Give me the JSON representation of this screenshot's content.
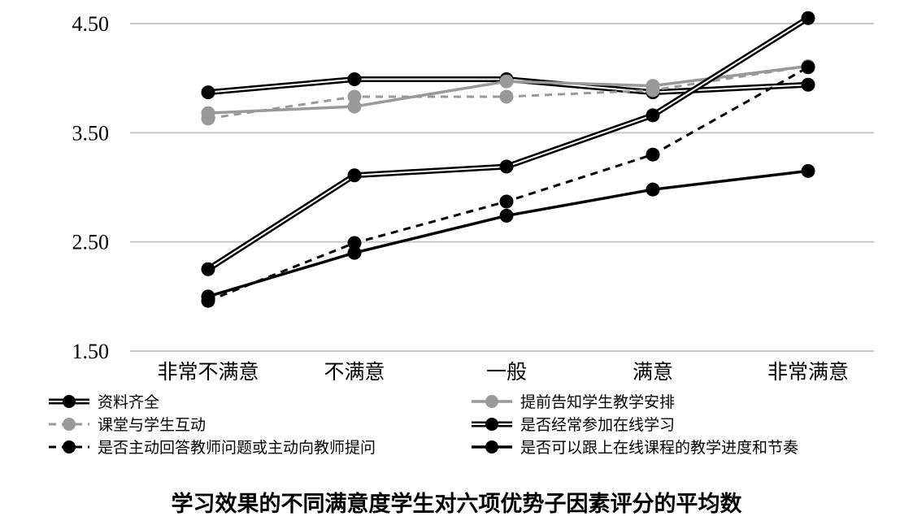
{
  "chart_data": {
    "type": "line",
    "title": "学习效果的不同满意度学生对六项优势子因素评分的平均数",
    "categories": [
      "非常不满意",
      "不满意",
      "一般",
      "满意",
      "非常满意"
    ],
    "ylim": [
      1.5,
      4.5
    ],
    "yticks": [
      "1.50",
      "2.50",
      "3.50",
      "4.50"
    ],
    "grid": true,
    "legend_position": "bottom",
    "series": [
      {
        "name": "资料齐全",
        "values": [
          3.87,
          3.99,
          3.99,
          3.87,
          3.94
        ],
        "color": "#000000",
        "style": "double"
      },
      {
        "name": "提前告知学生教学安排",
        "values": [
          3.68,
          3.74,
          3.97,
          3.93,
          4.11
        ],
        "color": "#999999",
        "style": "thick"
      },
      {
        "name": "课堂与学生互动",
        "values": [
          3.63,
          3.83,
          3.83,
          3.89,
          4.11
        ],
        "color": "#999999",
        "style": "dashed"
      },
      {
        "name": "是否经常参加在线学习",
        "values": [
          2.25,
          3.11,
          3.19,
          3.66,
          4.55
        ],
        "color": "#000000",
        "style": "double"
      },
      {
        "name": "是否主动回答教师问题或主动向教师提问",
        "values": [
          1.96,
          2.49,
          2.87,
          3.3,
          4.1
        ],
        "color": "#000000",
        "style": "dashed"
      },
      {
        "name": "是否可以跟上在线课程的教学进度和节奏",
        "values": [
          2.0,
          2.4,
          2.74,
          2.98,
          3.15
        ],
        "color": "#000000",
        "style": "thick"
      }
    ]
  }
}
